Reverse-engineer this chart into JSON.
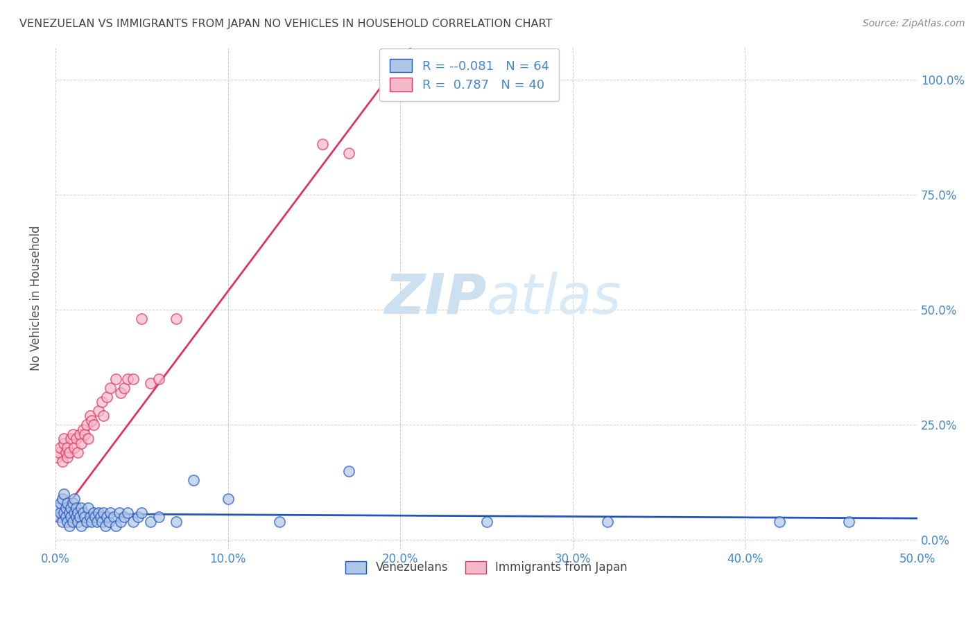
{
  "title": "VENEZUELAN VS IMMIGRANTS FROM JAPAN NO VEHICLES IN HOUSEHOLD CORRELATION CHART",
  "source": "Source: ZipAtlas.com",
  "xlabel_ticks": [
    "0.0%",
    "10.0%",
    "20.0%",
    "30.0%",
    "40.0%",
    "50.0%"
  ],
  "ylabel_label": "No Vehicles in Household",
  "ylabel_ticks": [
    "0.0%",
    "25.0%",
    "50.0%",
    "75.0%",
    "100.0%"
  ],
  "xlim": [
    0.0,
    0.5
  ],
  "ylim": [
    -0.02,
    1.07
  ],
  "watermark_zip": "ZIP",
  "watermark_atlas": "atlas",
  "legend_r1": "-0.081",
  "legend_n1": "64",
  "legend_r2": "0.787",
  "legend_n2": "40",
  "blue_fill": "#aec6e8",
  "pink_fill": "#f5b8c8",
  "line_blue_color": "#2255bb",
  "line_pink_color": "#dd3366",
  "title_color": "#444444",
  "axis_tick_color": "#4488cc",
  "watermark_color": "#cce0f0",
  "source_color": "#888888",
  "venezuelan_x": [
    0.001,
    0.002,
    0.003,
    0.003,
    0.004,
    0.004,
    0.005,
    0.005,
    0.006,
    0.006,
    0.007,
    0.007,
    0.008,
    0.008,
    0.009,
    0.009,
    0.01,
    0.01,
    0.011,
    0.011,
    0.012,
    0.012,
    0.013,
    0.013,
    0.014,
    0.015,
    0.015,
    0.016,
    0.017,
    0.018,
    0.019,
    0.02,
    0.021,
    0.022,
    0.023,
    0.024,
    0.025,
    0.026,
    0.027,
    0.028,
    0.029,
    0.03,
    0.031,
    0.032,
    0.034,
    0.035,
    0.037,
    0.038,
    0.04,
    0.042,
    0.045,
    0.048,
    0.05,
    0.055,
    0.06,
    0.07,
    0.08,
    0.1,
    0.13,
    0.17,
    0.25,
    0.32,
    0.42,
    0.46
  ],
  "venezuelan_y": [
    0.07,
    0.05,
    0.06,
    0.08,
    0.04,
    0.09,
    0.06,
    0.1,
    0.05,
    0.07,
    0.04,
    0.08,
    0.06,
    0.03,
    0.07,
    0.05,
    0.08,
    0.04,
    0.06,
    0.09,
    0.05,
    0.07,
    0.04,
    0.06,
    0.05,
    0.07,
    0.03,
    0.06,
    0.05,
    0.04,
    0.07,
    0.05,
    0.04,
    0.06,
    0.05,
    0.04,
    0.06,
    0.05,
    0.04,
    0.06,
    0.03,
    0.05,
    0.04,
    0.06,
    0.05,
    0.03,
    0.06,
    0.04,
    0.05,
    0.06,
    0.04,
    0.05,
    0.06,
    0.04,
    0.05,
    0.04,
    0.13,
    0.09,
    0.04,
    0.15,
    0.04,
    0.04,
    0.04,
    0.04
  ],
  "japan_x": [
    0.001,
    0.002,
    0.003,
    0.004,
    0.005,
    0.005,
    0.006,
    0.007,
    0.007,
    0.008,
    0.009,
    0.01,
    0.011,
    0.012,
    0.013,
    0.014,
    0.015,
    0.016,
    0.017,
    0.018,
    0.019,
    0.02,
    0.021,
    0.022,
    0.025,
    0.027,
    0.028,
    0.03,
    0.032,
    0.035,
    0.038,
    0.04,
    0.042,
    0.045,
    0.05,
    0.055,
    0.06,
    0.07,
    0.155,
    0.17
  ],
  "japan_y": [
    0.18,
    0.19,
    0.2,
    0.17,
    0.21,
    0.22,
    0.19,
    0.2,
    0.18,
    0.19,
    0.22,
    0.23,
    0.2,
    0.22,
    0.19,
    0.23,
    0.21,
    0.24,
    0.23,
    0.25,
    0.22,
    0.27,
    0.26,
    0.25,
    0.28,
    0.3,
    0.27,
    0.31,
    0.33,
    0.35,
    0.32,
    0.33,
    0.35,
    0.35,
    0.48,
    0.34,
    0.35,
    0.48,
    0.86,
    0.84
  ],
  "blue_line_intercept": 0.057,
  "blue_line_slope": -0.02,
  "pink_line_intercept": 0.04,
  "pink_line_slope": 5.0
}
